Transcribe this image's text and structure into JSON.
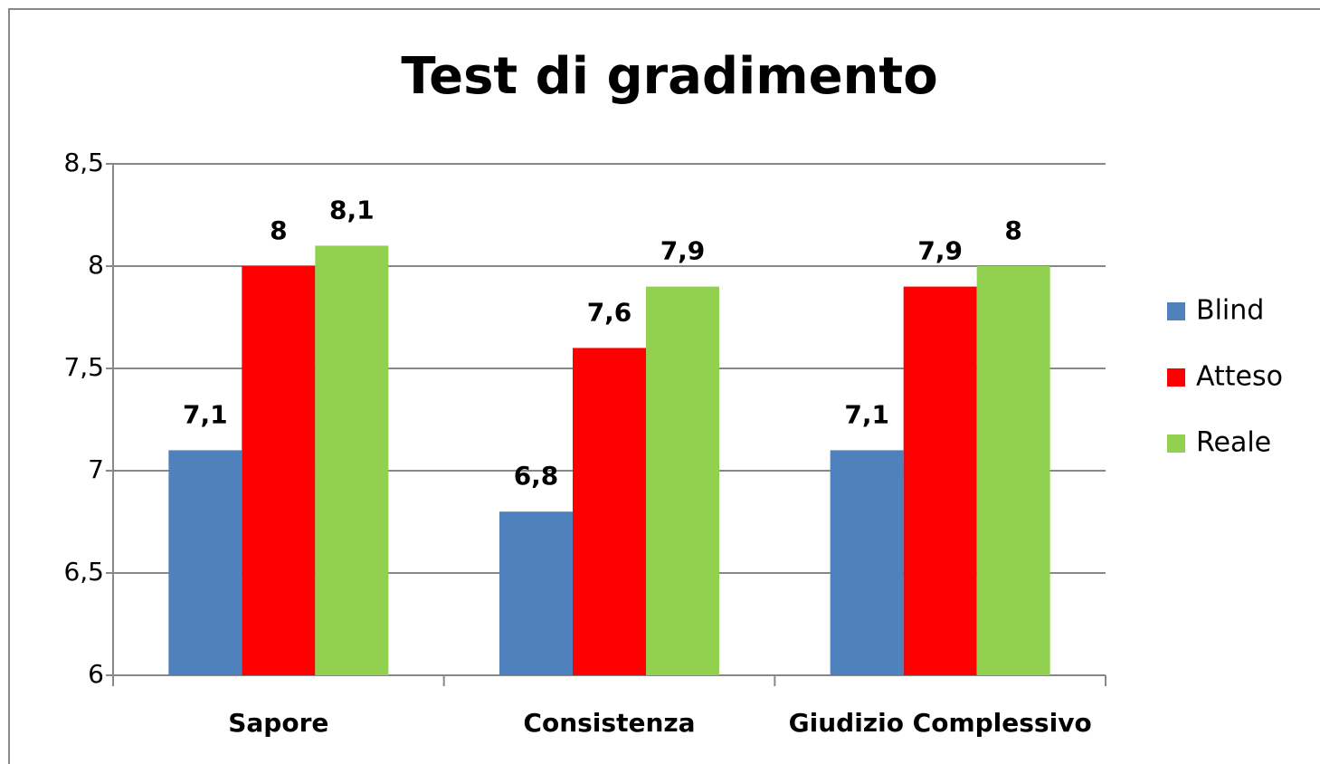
{
  "chart_data": {
    "type": "bar",
    "title": "Test di gradimento",
    "categories": [
      "Sapore",
      "Consistenza",
      "Giudizio Complessivo"
    ],
    "series": [
      {
        "name": "Blind",
        "color": "#4f81bd",
        "values": [
          7.1,
          6.8,
          7.1
        ],
        "value_labels": [
          "7,1",
          "6,8",
          "7,1"
        ]
      },
      {
        "name": "Atteso",
        "color": "#ff0000",
        "values": [
          8,
          7.6,
          7.9
        ],
        "value_labels": [
          "8",
          "7,6",
          "7,9"
        ]
      },
      {
        "name": "Reale",
        "color": "#92d050",
        "values": [
          8.1,
          7.9,
          8
        ],
        "value_labels": [
          "8,1",
          "7,9",
          "8"
        ]
      }
    ],
    "ylim": [
      6,
      8.5
    ],
    "yticks": [
      6,
      {
        "value": 6.5,
        "label": "6,5"
      },
      7,
      {
        "value": 7.5,
        "label": "7,5"
      },
      8,
      {
        "value": 8.5,
        "label": "8,5"
      }
    ],
    "grid": true,
    "legend": "right"
  }
}
